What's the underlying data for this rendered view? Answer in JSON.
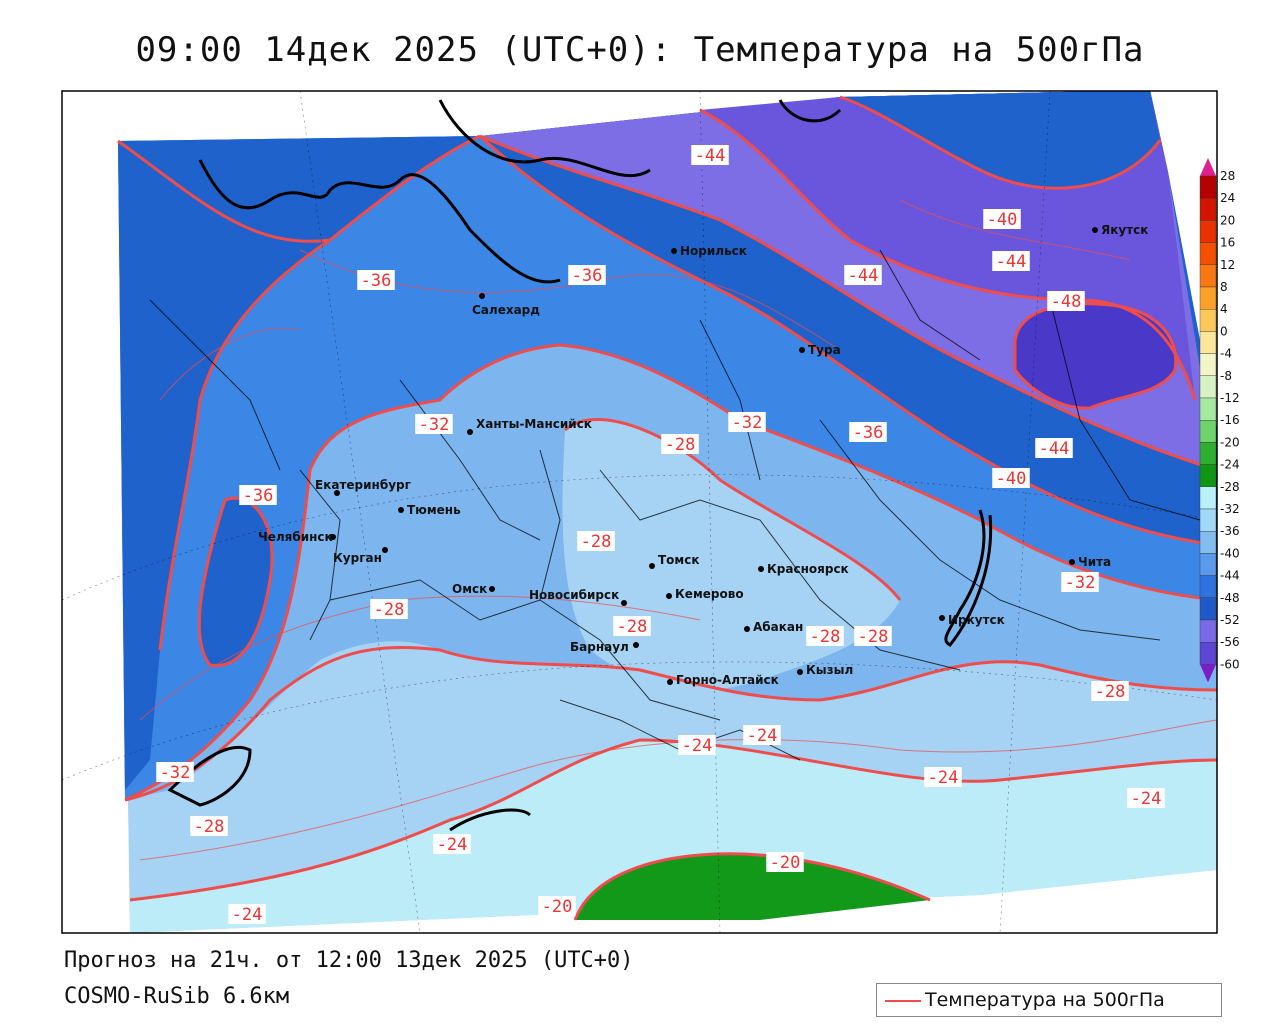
{
  "title": "09:00 14дек 2025 (UTC+0): Температура на 500гПа",
  "forecast_line": "Прогноз на 21ч. от 12:00 13дек 2025 (UTC+0)",
  "model_line": "COSMO-RuSib 6.6км",
  "legend_label": "Температура на 500гПа",
  "colors": {
    "isotherm": "#ef4c4c",
    "coast": "#000000"
  },
  "colorbar": {
    "ticks": [
      "28",
      "24",
      "20",
      "16",
      "12",
      "8",
      "4",
      "0",
      "-4",
      "-8",
      "-12",
      "-16",
      "-20",
      "-24",
      "-28",
      "-32",
      "-36",
      "-40",
      "-44",
      "-48",
      "-52",
      "-56",
      "-60"
    ],
    "colors": [
      "#b40000",
      "#d21400",
      "#e83200",
      "#f55000",
      "#fa7814",
      "#fca028",
      "#fdc85a",
      "#fde69a",
      "#f2f6c8",
      "#d6f3c2",
      "#a6e9a0",
      "#6cd46a",
      "#2faf2f",
      "#0f9614",
      "#baf0fa",
      "#a0d8f6",
      "#83bdf0",
      "#5a9aea",
      "#2f73e0",
      "#1e5bc8",
      "#7a6ae8",
      "#5d47d2",
      "#3c2cb4",
      "#2a1a96",
      "#1e0f78"
    ]
  },
  "isotherm_labels": [
    {
      "text": "-44"
    },
    {
      "text": "-40"
    },
    {
      "text": "-44"
    },
    {
      "text": "-44"
    },
    {
      "text": "-48"
    },
    {
      "text": "-36"
    },
    {
      "text": "-36"
    },
    {
      "text": "-32"
    },
    {
      "text": "-28"
    },
    {
      "text": "-32"
    },
    {
      "text": "-36"
    },
    {
      "text": "-44"
    },
    {
      "text": "-40"
    },
    {
      "text": "-36"
    },
    {
      "text": "-28"
    },
    {
      "text": "-32"
    },
    {
      "text": "-28"
    },
    {
      "text": "-28"
    },
    {
      "text": "-28"
    },
    {
      "text": "-28"
    },
    {
      "text": "-28"
    },
    {
      "text": "-24"
    },
    {
      "text": "-24"
    },
    {
      "text": "-24"
    },
    {
      "text": "-24"
    },
    {
      "text": "-32"
    },
    {
      "text": "-28"
    },
    {
      "text": "-24"
    },
    {
      "text": "-20"
    },
    {
      "text": "-20"
    },
    {
      "text": "-24"
    }
  ],
  "cities": [
    {
      "name": "Норильск"
    },
    {
      "name": "Якутск"
    },
    {
      "name": "Салехард"
    },
    {
      "name": "Тура"
    },
    {
      "name": "Ханты-Мансийск"
    },
    {
      "name": "Екатеринбург"
    },
    {
      "name": "Тюмень"
    },
    {
      "name": "Челябинск"
    },
    {
      "name": "Курган"
    },
    {
      "name": "Омск"
    },
    {
      "name": "Новосибирск"
    },
    {
      "name": "Томск"
    },
    {
      "name": "Кемерово"
    },
    {
      "name": "Красноярск"
    },
    {
      "name": "Абакан"
    },
    {
      "name": "Барнаул"
    },
    {
      "name": "Горно-Алтайск"
    },
    {
      "name": "Кызыл"
    },
    {
      "name": "Иркутск"
    },
    {
      "name": "Чита"
    }
  ]
}
